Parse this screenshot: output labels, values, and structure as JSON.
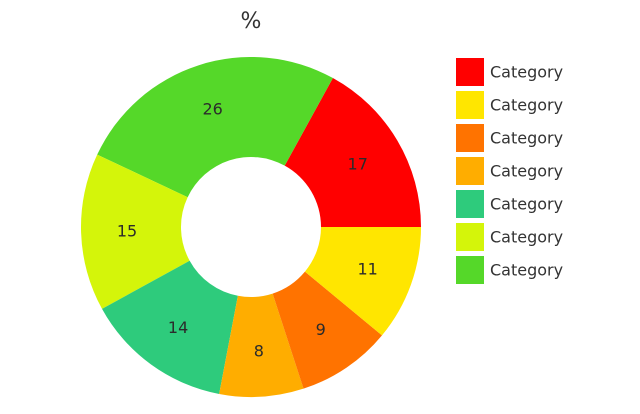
{
  "chart_data": {
    "type": "pie",
    "style": "donut",
    "title": "%",
    "legend_position": "right",
    "slices": [
      {
        "label": "Category",
        "value": 17,
        "color": "#ff0000"
      },
      {
        "label": "Category",
        "value": 26,
        "color": "#55d829"
      },
      {
        "label": "Category",
        "value": 15,
        "color": "#d4f50a"
      },
      {
        "label": "Category",
        "value": 14,
        "color": "#2ecb7c"
      },
      {
        "label": "Category",
        "value": 8,
        "color": "#ffad00"
      },
      {
        "label": "Category",
        "value": 9,
        "color": "#ff7300"
      },
      {
        "label": "Category",
        "value": 11,
        "color": "#ffe600"
      }
    ],
    "legend": [
      {
        "label": "Category",
        "color": "#ff0000"
      },
      {
        "label": "Category",
        "color": "#ffe600"
      },
      {
        "label": "Category",
        "color": "#ff7300"
      },
      {
        "label": "Category",
        "color": "#ffad00"
      },
      {
        "label": "Category",
        "color": "#2ecb7c"
      },
      {
        "label": "Category",
        "color": "#d4f50a"
      },
      {
        "label": "Category",
        "color": "#55d829"
      }
    ]
  }
}
